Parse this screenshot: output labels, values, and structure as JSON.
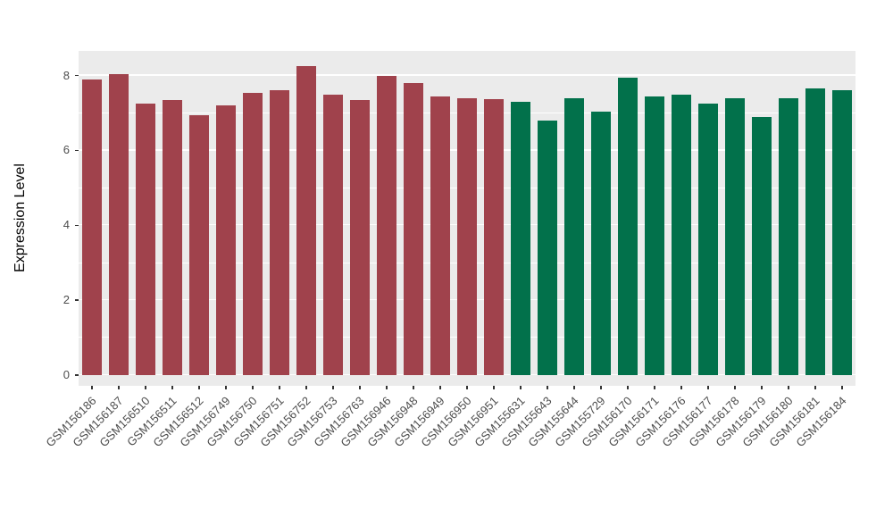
{
  "figure": {
    "background": "#FFFFFF",
    "panel_background": "#EBEBEB",
    "gridline_color": "#FFFFFF",
    "tick_mark_color": "#333333",
    "tick_label_color": "#4D4D4D",
    "axis_title_color": "#000000"
  },
  "chart_data": {
    "type": "bar",
    "title": "",
    "xlabel": "",
    "ylabel": "Expression Level",
    "ylim": [
      0,
      8.66
    ],
    "yticks": [
      0,
      2,
      4,
      6,
      8
    ],
    "yticks_minor": [
      1,
      3,
      5,
      7
    ],
    "grid": true,
    "legend": "none",
    "group_colors": {
      "group1": "#A0424C",
      "group2": "#02714B"
    },
    "bars": [
      {
        "label": "GSM156186",
        "value": 7.9,
        "group": "group1"
      },
      {
        "label": "GSM156187",
        "value": 8.05,
        "group": "group1"
      },
      {
        "label": "GSM156510",
        "value": 7.25,
        "group": "group1"
      },
      {
        "label": "GSM156511",
        "value": 7.35,
        "group": "group1"
      },
      {
        "label": "GSM156512",
        "value": 6.95,
        "group": "group1"
      },
      {
        "label": "GSM156749",
        "value": 7.2,
        "group": "group1"
      },
      {
        "label": "GSM156750",
        "value": 7.55,
        "group": "group1"
      },
      {
        "label": "GSM156751",
        "value": 7.6,
        "group": "group1"
      },
      {
        "label": "GSM156752",
        "value": 8.25,
        "group": "group1"
      },
      {
        "label": "GSM156753",
        "value": 7.5,
        "group": "group1"
      },
      {
        "label": "GSM156763",
        "value": 7.35,
        "group": "group1"
      },
      {
        "label": "GSM156946",
        "value": 8.0,
        "group": "group1"
      },
      {
        "label": "GSM156948",
        "value": 7.8,
        "group": "group1"
      },
      {
        "label": "GSM156949",
        "value": 7.45,
        "group": "group1"
      },
      {
        "label": "GSM156950",
        "value": 7.4,
        "group": "group1"
      },
      {
        "label": "GSM156951",
        "value": 7.38,
        "group": "group1"
      },
      {
        "label": "GSM155631",
        "value": 7.3,
        "group": "group2"
      },
      {
        "label": "GSM155643",
        "value": 6.8,
        "group": "group2"
      },
      {
        "label": "GSM155644",
        "value": 7.4,
        "group": "group2"
      },
      {
        "label": "GSM155729",
        "value": 7.05,
        "group": "group2"
      },
      {
        "label": "GSM156170",
        "value": 7.95,
        "group": "group2"
      },
      {
        "label": "GSM156171",
        "value": 7.45,
        "group": "group2"
      },
      {
        "label": "GSM156176",
        "value": 7.5,
        "group": "group2"
      },
      {
        "label": "GSM156177",
        "value": 7.25,
        "group": "group2"
      },
      {
        "label": "GSM156178",
        "value": 7.4,
        "group": "group2"
      },
      {
        "label": "GSM156179",
        "value": 6.9,
        "group": "group2"
      },
      {
        "label": "GSM156180",
        "value": 7.4,
        "group": "group2"
      },
      {
        "label": "GSM156181",
        "value": 7.65,
        "group": "group2"
      },
      {
        "label": "GSM156184",
        "value": 7.6,
        "group": "group2"
      }
    ]
  }
}
